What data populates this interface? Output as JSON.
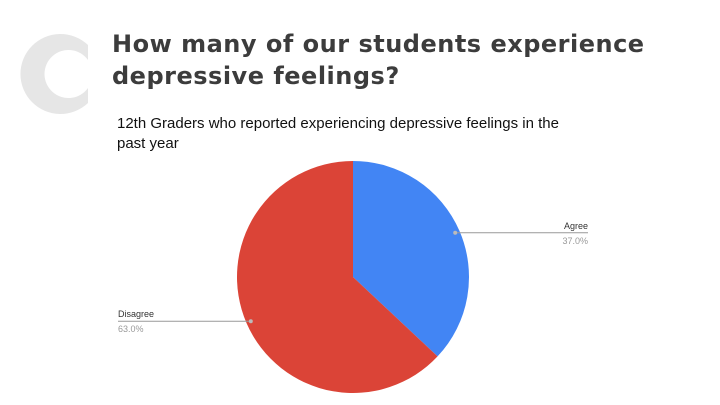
{
  "heading": "How many of our students experience depressive feelings?",
  "chart_data": {
    "type": "pie",
    "title": "12th Graders who reported experiencing depressive feelings in the past year",
    "categories": [
      "Agree",
      "Disagree"
    ],
    "values": [
      37,
      63
    ],
    "value_labels": [
      "37.0%",
      "63.0%"
    ],
    "colors": [
      "#4285f4",
      "#db4437"
    ]
  }
}
